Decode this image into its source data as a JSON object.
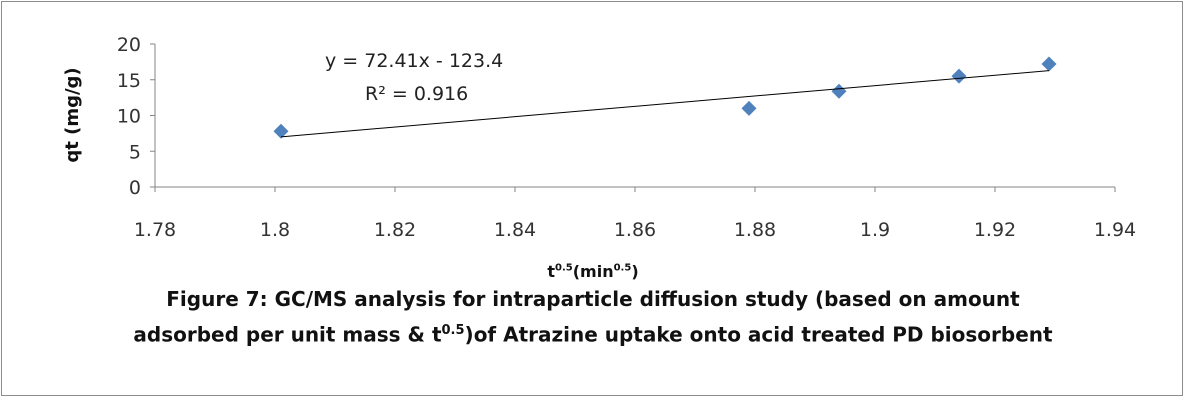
{
  "chart_data": {
    "type": "scatter",
    "x": [
      1.801,
      1.879,
      1.894,
      1.914,
      1.929
    ],
    "y": [
      7.8,
      11.0,
      13.4,
      15.5,
      17.2
    ],
    "marker_color": "#4F81BD",
    "trendline": {
      "slope": 72.41,
      "intercept": -123.4,
      "equation": "y = 72.41x - 123.4",
      "r2_label": "R² = 0.916"
    },
    "xlim": [
      1.78,
      1.94
    ],
    "ylim": [
      0,
      20
    ],
    "xticks": [
      "1.78",
      "1.8",
      "1.82",
      "1.84",
      "1.86",
      "1.88",
      "1.9",
      "1.92",
      "1.94"
    ],
    "yticks": [
      "0",
      "5",
      "10",
      "15",
      "20"
    ],
    "ylabel": "qt (mg/g)",
    "xlabel": {
      "base": "t",
      "sup1": "0.5",
      "mid": "(min",
      "sup2": "0.5",
      "end": ")"
    },
    "grid": false,
    "legend": "none"
  },
  "caption": {
    "part1": "Figure 7: GC/MS analysis for intraparticle diffusion study (based on amount adsorbed per unit mass & t",
    "sup": "0.5",
    "part2": ")of Atrazine uptake onto acid treated PD biosorbent"
  }
}
